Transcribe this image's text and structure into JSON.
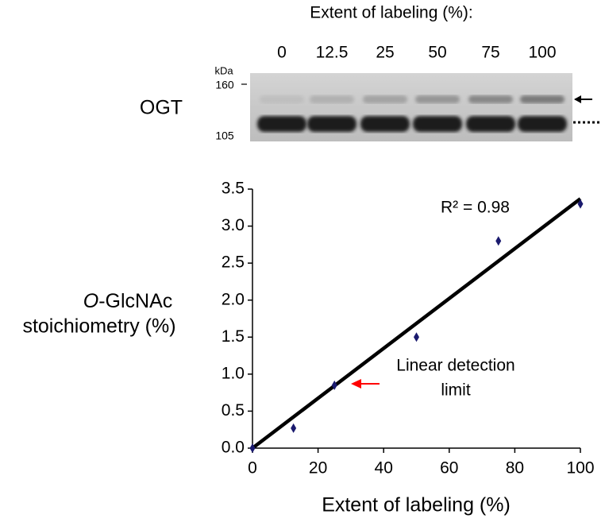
{
  "gel": {
    "title": "Extent of labeling (%):",
    "lanes": [
      0,
      12.5,
      25,
      50,
      75,
      100
    ],
    "protein": "OGT",
    "unit": "kDa",
    "markers": [
      160,
      105
    ]
  },
  "chart_data": {
    "type": "scatter",
    "x": [
      0,
      12.5,
      25,
      50,
      75,
      100
    ],
    "values": [
      0,
      0.27,
      0.85,
      1.5,
      2.8,
      3.3
    ],
    "color": "#1a1a6e",
    "trendline": {
      "x": [
        0,
        100
      ],
      "values": [
        0,
        3.37
      ],
      "color": "#000000"
    },
    "xlabel": "Extent of labeling (%)",
    "ylabel": [
      "O-GlcNAc",
      "stoichiometry (%)"
    ],
    "annotations": [
      "R² = 0.98",
      [
        "Linear detection",
        "limit"
      ]
    ],
    "xlim": [
      0,
      100
    ],
    "ylim": [
      0,
      3.5
    ],
    "xticks": [
      0,
      20,
      40,
      60,
      80,
      100
    ],
    "yticks": [
      {
        "value": 0,
        "label": "0.0"
      },
      {
        "value": 0.5,
        "label": "0.5"
      },
      {
        "value": 1,
        "label": "1.0"
      },
      {
        "value": 1.5,
        "label": "1.5"
      },
      {
        "value": 2,
        "label": "2.0"
      },
      {
        "value": 2.5,
        "label": "2.5"
      },
      {
        "value": 3,
        "label": "3.0"
      },
      {
        "value": 3.5,
        "label": "3.5"
      }
    ]
  }
}
